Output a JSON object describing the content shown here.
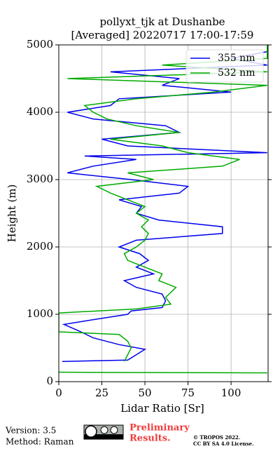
{
  "chart_data": {
    "type": "line",
    "title": "pollyxt_tjk at Dushanbe",
    "subtitle": "[Averaged] 20220717 17:00-17:59",
    "x_label": "Lidar Ratio [Sr]",
    "y_label": "Height (m)",
    "xlim": [
      0,
      121.5
    ],
    "xticks": [
      0,
      25,
      50,
      75,
      100
    ],
    "ylim": [
      0,
      5000
    ],
    "yticks": [
      0,
      1000,
      2000,
      3000,
      4000,
      5000
    ],
    "grid": true,
    "legend": "upper right",
    "series": [
      {
        "name": "355 nm",
        "color": "#0000ee",
        "y": [
          300,
          320,
          400,
          480,
          550,
          650,
          750,
          850,
          900,
          1000,
          1050,
          1100,
          1200,
          1300,
          1400,
          1500,
          1600,
          1700,
          1800,
          1900,
          2000,
          2100,
          2200,
          2300,
          2400,
          2500,
          2600,
          2700,
          2800,
          2900,
          3000,
          3100,
          3200,
          3300,
          3350,
          3400,
          3500,
          3600,
          3700,
          3800,
          3900,
          4000,
          4100,
          4200,
          4300,
          4400,
          4500,
          4600,
          4700,
          4800,
          4900,
          5000
        ],
        "values": [
          2,
          40,
          45,
          50,
          35,
          20,
          12,
          3,
          15,
          40,
          42,
          60,
          62,
          60,
          45,
          38,
          55,
          45,
          52,
          47,
          35,
          45,
          95,
          95,
          58,
          45,
          48,
          35,
          70,
          75,
          42,
          5,
          20,
          45,
          15,
          121,
          40,
          25,
          70,
          62,
          20,
          5,
          30,
          35,
          100,
          60,
          70,
          30,
          121,
          100,
          121,
          121
        ]
      },
      {
        "name": "532 nm",
        "color": "#00aa00",
        "y": [
          130,
          140,
          200,
          300,
          400,
          500,
          600,
          700,
          740,
          1020,
          1080,
          1150,
          1250,
          1400,
          1500,
          1600,
          1700,
          1800,
          1900,
          2000,
          2100,
          2200,
          2300,
          2400,
          2500,
          2600,
          2700,
          2800,
          2900,
          3000,
          3100,
          3200,
          3300,
          3400,
          3500,
          3600,
          3700,
          3800,
          3900,
          4000,
          4100,
          4200,
          4300,
          4400,
          4500,
          4600,
          4700,
          4800,
          4900,
          5000
        ],
        "values": [
          121,
          0,
          null,
          38,
          40,
          42,
          40,
          35,
          0,
          0,
          45,
          65,
          62,
          68,
          58,
          60,
          50,
          40,
          38,
          45,
          50,
          52,
          48,
          52,
          45,
          50,
          40,
          30,
          22,
          55,
          40,
          95,
          105,
          75,
          60,
          30,
          70,
          45,
          28,
          20,
          15,
          45,
          90,
          121,
          5,
          121,
          60,
          121,
          121,
          121
        ]
      }
    ]
  },
  "footer": {
    "version": "Version: 3.5",
    "method": "Method: Raman",
    "status_line1": "Preliminary",
    "status_line2": "Results.",
    "copyright_line1": "© TROPOS 2022.",
    "copyright_line2": "CC BY SA 4.0 License."
  }
}
